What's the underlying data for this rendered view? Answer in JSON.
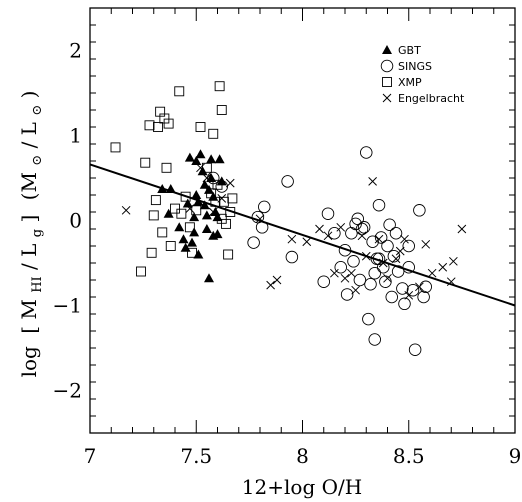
{
  "chart_data": {
    "type": "scatter",
    "xlabel": "12+log O/H",
    "ylabel_parts": {
      "log": "log",
      "bracket_open": "[",
      "M": "M",
      "HI": "HI",
      "over": " / ",
      "L": "L",
      "g": "g",
      "bracket_close": "]",
      "units_open": "(M",
      "sun1": "⊙",
      "units_mid": " / L",
      "sun2": "⊙",
      "units_close": ")"
    },
    "xlim": [
      7,
      9
    ],
    "ylim": [
      -2.5,
      2.5
    ],
    "xticks": [
      7,
      7.5,
      8,
      8.5,
      9
    ],
    "xtick_labels": [
      "7",
      "7.5",
      "8",
      "8.5",
      "9"
    ],
    "yticks": [
      -2,
      -1,
      0,
      1,
      2
    ],
    "ytick_labels": [
      "−2",
      "−1",
      "0",
      "1",
      "2"
    ],
    "legend_position": "top-right",
    "fit_line": {
      "x": [
        7,
        9
      ],
      "y": [
        0.66,
        -1.0
      ]
    },
    "series": [
      {
        "name": "GBT",
        "marker": "filled-triangle",
        "points": [
          [
            7.34,
            0.37
          ],
          [
            7.38,
            0.37
          ],
          [
            7.37,
            0.08
          ],
          [
            7.42,
            -0.08
          ],
          [
            7.44,
            -0.22
          ],
          [
            7.45,
            -0.32
          ],
          [
            7.46,
            0.2
          ],
          [
            7.47,
            0.74
          ],
          [
            7.48,
            -0.26
          ],
          [
            7.49,
            -0.14
          ],
          [
            7.5,
            0.3
          ],
          [
            7.51,
            0.22
          ],
          [
            7.51,
            -0.4
          ],
          [
            7.52,
            0.78
          ],
          [
            7.53,
            0.58
          ],
          [
            7.54,
            0.42
          ],
          [
            7.54,
            0.18
          ],
          [
            7.55,
            0.06
          ],
          [
            7.55,
            -0.1
          ],
          [
            7.56,
            -0.68
          ],
          [
            7.57,
            0.72
          ],
          [
            7.57,
            0.5
          ],
          [
            7.58,
            0.28
          ],
          [
            7.58,
            -0.18
          ],
          [
            7.59,
            0.1
          ],
          [
            7.6,
            0.04
          ],
          [
            7.6,
            -0.16
          ],
          [
            7.61,
            0.72
          ],
          [
            7.62,
            0.46
          ],
          [
            7.56,
            0.36
          ],
          [
            7.5,
            0.7
          ],
          [
            7.49,
            0.04
          ]
        ]
      },
      {
        "name": "SINGS",
        "marker": "open-circle",
        "points": [
          [
            7.58,
            0.5
          ],
          [
            7.62,
            0.4
          ],
          [
            7.77,
            -0.26
          ],
          [
            7.79,
            0.04
          ],
          [
            7.81,
            -0.08
          ],
          [
            7.82,
            0.16
          ],
          [
            7.93,
            0.46
          ],
          [
            7.95,
            -0.43
          ],
          [
            8.1,
            -0.72
          ],
          [
            8.12,
            0.08
          ],
          [
            8.15,
            -0.15
          ],
          [
            8.18,
            -0.55
          ],
          [
            8.2,
            -0.35
          ],
          [
            8.21,
            -0.87
          ],
          [
            8.23,
            -0.15
          ],
          [
            8.24,
            -0.48
          ],
          [
            8.25,
            -0.04
          ],
          [
            8.26,
            0.02
          ],
          [
            8.27,
            -0.7
          ],
          [
            8.28,
            -0.1
          ],
          [
            8.3,
            0.8
          ],
          [
            8.31,
            -1.16
          ],
          [
            8.32,
            -0.75
          ],
          [
            8.33,
            -0.25
          ],
          [
            8.34,
            -1.4
          ],
          [
            8.35,
            -0.45
          ],
          [
            8.36,
            0.18
          ],
          [
            8.37,
            -0.2
          ],
          [
            8.38,
            -0.55
          ],
          [
            8.39,
            -0.72
          ],
          [
            8.4,
            -0.3
          ],
          [
            8.41,
            -0.05
          ],
          [
            8.42,
            -0.9
          ],
          [
            8.43,
            -0.42
          ],
          [
            8.44,
            -0.15
          ],
          [
            8.45,
            -0.6
          ],
          [
            8.47,
            -0.8
          ],
          [
            8.48,
            -0.98
          ],
          [
            8.5,
            -0.3
          ],
          [
            8.5,
            -0.55
          ],
          [
            8.52,
            -0.82
          ],
          [
            8.53,
            -1.52
          ],
          [
            8.55,
            0.12
          ],
          [
            8.57,
            -0.9
          ],
          [
            8.58,
            -0.78
          ],
          [
            8.34,
            -0.62
          ],
          [
            8.29,
            -0.08
          ],
          [
            8.36,
            -0.45
          ]
        ]
      },
      {
        "name": "XMP",
        "marker": "open-square",
        "points": [
          [
            7.12,
            0.86
          ],
          [
            7.24,
            -0.6
          ],
          [
            7.26,
            0.68
          ],
          [
            7.28,
            1.12
          ],
          [
            7.29,
            -0.38
          ],
          [
            7.3,
            0.06
          ],
          [
            7.31,
            0.24
          ],
          [
            7.32,
            1.1
          ],
          [
            7.33,
            1.28
          ],
          [
            7.34,
            -0.14
          ],
          [
            7.35,
            1.2
          ],
          [
            7.36,
            0.62
          ],
          [
            7.37,
            1.14
          ],
          [
            7.38,
            -0.3
          ],
          [
            7.4,
            0.14
          ],
          [
            7.42,
            1.52
          ],
          [
            7.43,
            0.08
          ],
          [
            7.45,
            0.28
          ],
          [
            7.47,
            -0.08
          ],
          [
            7.48,
            -0.38
          ],
          [
            7.5,
            0.12
          ],
          [
            7.52,
            1.1
          ],
          [
            7.55,
            0.62
          ],
          [
            7.57,
            0.32
          ],
          [
            7.58,
            1.02
          ],
          [
            7.59,
            0.22
          ],
          [
            7.6,
            0.42
          ],
          [
            7.61,
            1.58
          ],
          [
            7.62,
            1.3
          ],
          [
            7.62,
            0.02
          ],
          [
            7.63,
            0.22
          ],
          [
            7.64,
            -0.04
          ],
          [
            7.65,
            -0.4
          ],
          [
            7.66,
            0.1
          ],
          [
            7.67,
            0.26
          ]
        ]
      },
      {
        "name": "Engelbracht",
        "marker": "cross",
        "points": [
          [
            7.17,
            0.12
          ],
          [
            7.47,
            0.14
          ],
          [
            7.52,
            0.62
          ],
          [
            7.55,
            0.5
          ],
          [
            7.58,
            0.1
          ],
          [
            7.62,
            0.26
          ],
          [
            7.66,
            0.44
          ],
          [
            7.8,
            0.02
          ],
          [
            7.85,
            -0.76
          ],
          [
            7.88,
            -0.7
          ],
          [
            7.95,
            -0.22
          ],
          [
            8.02,
            -0.25
          ],
          [
            8.08,
            -0.1
          ],
          [
            8.12,
            -0.18
          ],
          [
            8.15,
            -0.62
          ],
          [
            8.18,
            -0.08
          ],
          [
            8.2,
            -0.68
          ],
          [
            8.23,
            -0.62
          ],
          [
            8.25,
            -0.82
          ],
          [
            8.28,
            -0.18
          ],
          [
            8.3,
            -0.42
          ],
          [
            8.33,
            0.46
          ],
          [
            8.36,
            -0.22
          ],
          [
            8.38,
            -0.5
          ],
          [
            8.4,
            -0.68
          ],
          [
            8.44,
            -0.45
          ],
          [
            8.48,
            -0.22
          ],
          [
            8.5,
            -0.88
          ],
          [
            8.55,
            -0.78
          ],
          [
            8.58,
            -0.28
          ],
          [
            8.61,
            -0.62
          ],
          [
            8.66,
            -0.55
          ],
          [
            8.7,
            -0.72
          ],
          [
            8.71,
            -0.48
          ],
          [
            8.75,
            -0.1
          ],
          [
            8.46,
            -0.36
          ]
        ]
      }
    ]
  }
}
